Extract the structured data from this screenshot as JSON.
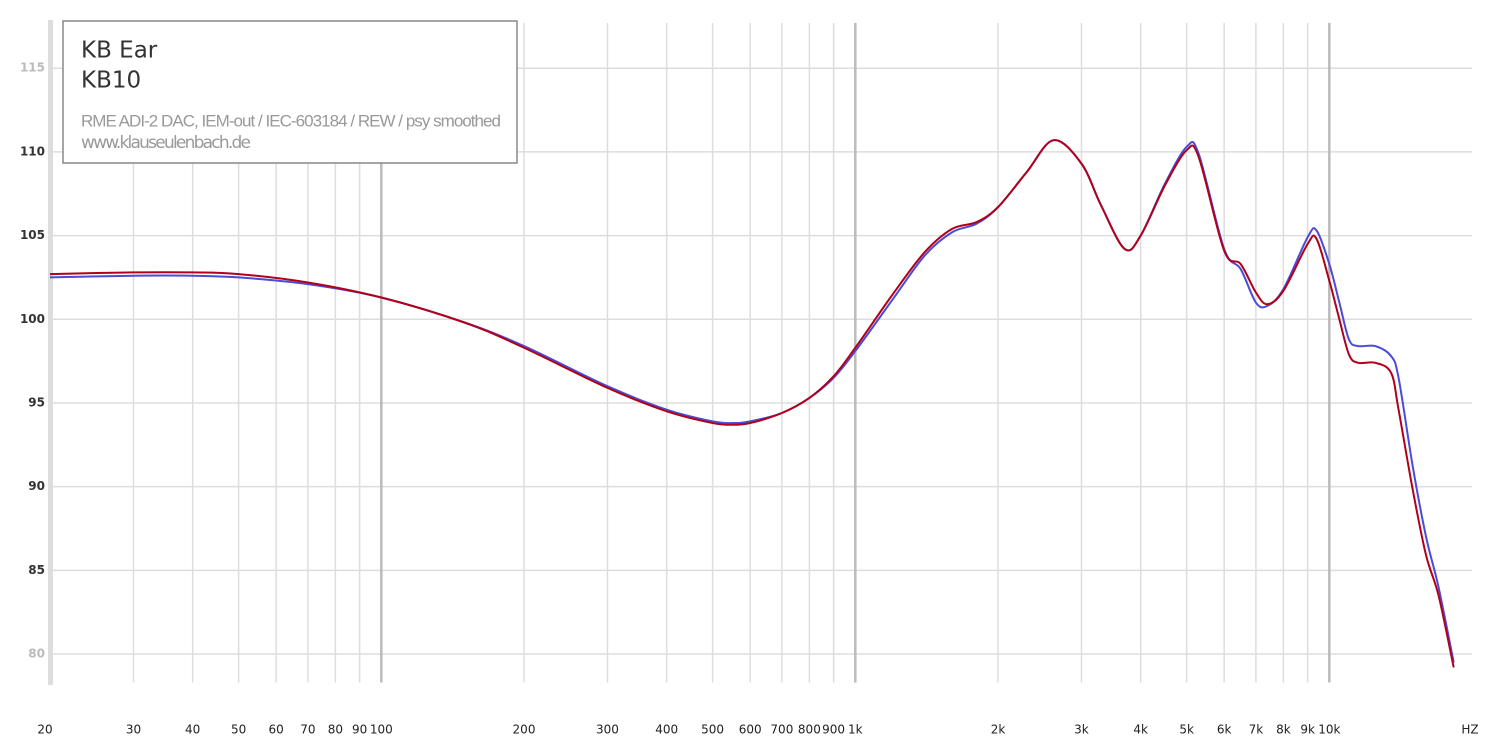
{
  "chart_data": {
    "type": "line",
    "title": "KB Ear",
    "model": "KB10",
    "annotations": [
      "RME ADI-2 DAC, IEM-out / IEC-603184 / REW / psy smoothed",
      "www.klauseulenbach.de"
    ],
    "xlabel": "HZ",
    "xscale": "log",
    "grid": true,
    "x": [
      20,
      30,
      40,
      50,
      70,
      100,
      150,
      200,
      300,
      400,
      500,
      550,
      600,
      700,
      800,
      900,
      1000,
      1200,
      1400,
      1600,
      1800,
      2000,
      2300,
      2620,
      3000,
      3300,
      3700,
      4000,
      4500,
      5000,
      5300,
      6000,
      6500,
      7000,
      7400,
      8000,
      9000,
      9400,
      10000,
      10500,
      11000,
      11500,
      12500,
      13500,
      14000,
      15000,
      16000,
      17000,
      18300
    ],
    "series": [
      {
        "color": "#4b4bd8",
        "values": [
          102.5,
          102.6,
          102.6,
          102.5,
          102.1,
          101.3,
          99.8,
          98.4,
          96.0,
          94.6,
          93.9,
          93.8,
          93.9,
          94.4,
          95.3,
          96.5,
          98.1,
          101.2,
          103.8,
          105.2,
          105.7,
          106.7,
          108.8,
          110.7,
          109.3,
          106.8,
          104.2,
          105.0,
          108.1,
          110.3,
          109.9,
          104.2,
          103.0,
          101.0,
          100.8,
          101.8,
          104.9,
          105.3,
          103.3,
          101.0,
          98.8,
          98.4,
          98.4,
          97.8,
          96.5,
          91.2,
          87.0,
          84.0,
          79.5
        ]
      },
      {
        "color": "#b0001a",
        "values": [
          102.7,
          102.8,
          102.8,
          102.7,
          102.2,
          101.3,
          99.8,
          98.3,
          95.9,
          94.5,
          93.8,
          93.7,
          93.8,
          94.4,
          95.3,
          96.6,
          98.3,
          101.5,
          104.0,
          105.4,
          105.8,
          106.7,
          108.8,
          110.7,
          109.3,
          106.8,
          104.2,
          105.0,
          108.0,
          110.1,
          109.7,
          104.1,
          103.3,
          101.6,
          100.9,
          101.7,
          104.5,
          104.8,
          102.3,
          100.0,
          97.9,
          97.4,
          97.4,
          96.8,
          94.6,
          89.8,
          85.9,
          83.5,
          79.2
        ]
      }
    ],
    "xlim": [
      20,
      20000
    ],
    "ylim": [
      78,
      118
    ],
    "yticks": [
      80,
      85,
      90,
      95,
      100,
      105,
      110,
      115
    ],
    "xticks": [
      20,
      30,
      40,
      50,
      60,
      70,
      80,
      90,
      100,
      200,
      300,
      400,
      500,
      600,
      700,
      800,
      900,
      {
        "value": 1000,
        "label": "1k"
      },
      {
        "value": 2000,
        "label": "2k"
      },
      {
        "value": 3000,
        "label": "3k"
      },
      {
        "value": 4000,
        "label": "4k"
      },
      {
        "value": 5000,
        "label": "5k"
      },
      {
        "value": 6000,
        "label": "6k"
      },
      {
        "value": 7000,
        "label": "7k"
      },
      {
        "value": 8000,
        "label": "8k"
      },
      {
        "value": 9000,
        "label": "9k"
      },
      {
        "value": 10000,
        "label": "10k"
      }
    ]
  }
}
